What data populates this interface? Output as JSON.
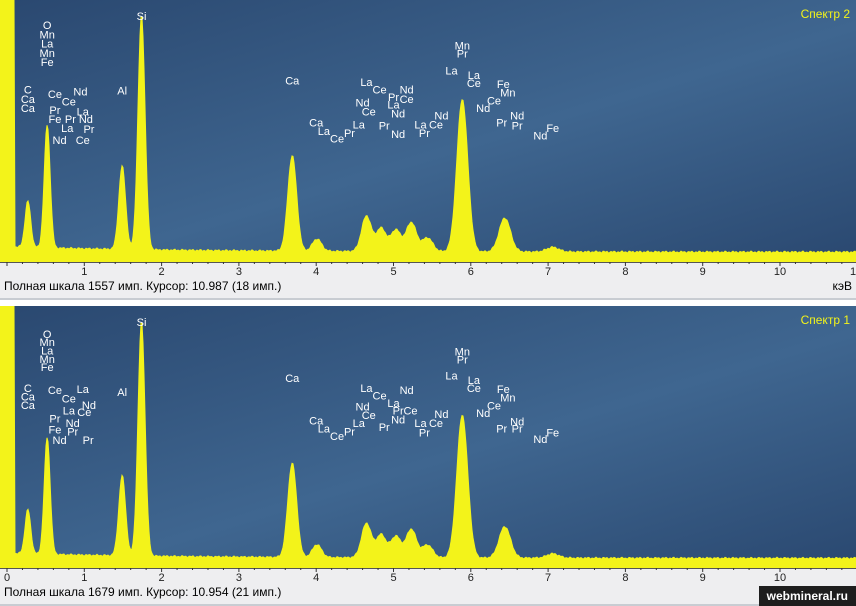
{
  "chart_data": [
    {
      "type": "line",
      "title": "Спектр 2",
      "xlabel": "кэВ",
      "xlim": [
        0,
        11
      ],
      "ylim": [
        0,
        1557
      ],
      "x_ticks": [
        "1",
        "2",
        "3",
        "4",
        "5",
        "6",
        "7",
        "8",
        "9",
        "10",
        "1"
      ],
      "status_text": "Полная шкала 1557 имп. Курсор: 10.987  (18 имп.)",
      "peaks": [
        {
          "x": 0.27,
          "y": 300
        },
        {
          "x": 0.52,
          "y": 800
        },
        {
          "x": 1.49,
          "y": 540
        },
        {
          "x": 1.74,
          "y": 1520
        },
        {
          "x": 3.69,
          "y": 620
        },
        {
          "x": 4.01,
          "y": 80
        },
        {
          "x": 4.65,
          "y": 230
        },
        {
          "x": 4.84,
          "y": 150
        },
        {
          "x": 5.03,
          "y": 140
        },
        {
          "x": 5.23,
          "y": 190
        },
        {
          "x": 5.44,
          "y": 90
        },
        {
          "x": 5.89,
          "y": 990
        },
        {
          "x": 6.44,
          "y": 220
        },
        {
          "x": 7.06,
          "y": 30
        }
      ],
      "labels": [
        {
          "text": "Si",
          "x": 1.74,
          "row": 0
        },
        {
          "text": "O",
          "x": 0.52,
          "row": 1
        },
        {
          "text": "Mn",
          "x": 0.52,
          "row": 2
        },
        {
          "text": "La",
          "x": 0.52,
          "row": 3
        },
        {
          "text": "Mn",
          "x": 0.52,
          "row": 4
        },
        {
          "text": "Fe",
          "x": 0.52,
          "row": 5
        },
        {
          "text": "C",
          "x": 0.27,
          "row": 8
        },
        {
          "text": "Ca",
          "x": 0.27,
          "row": 9
        },
        {
          "text": "Ca",
          "x": 0.27,
          "row": 10
        },
        {
          "text": "Ce",
          "x": 0.62,
          "row": 8.5
        },
        {
          "text": "Ce",
          "x": 0.8,
          "row": 9.3
        },
        {
          "text": "Nd",
          "x": 0.95,
          "row": 8.2
        },
        {
          "text": "Pr",
          "x": 0.62,
          "row": 10.2
        },
        {
          "text": "Fe",
          "x": 0.62,
          "row": 11.2
        },
        {
          "text": "Pr",
          "x": 0.82,
          "row": 11.2
        },
        {
          "text": "La",
          "x": 0.98,
          "row": 10.4
        },
        {
          "text": "Nd",
          "x": 1.02,
          "row": 11.2
        },
        {
          "text": "La",
          "x": 0.78,
          "row": 12.2
        },
        {
          "text": "Pr",
          "x": 1.06,
          "row": 12.3
        },
        {
          "text": "Nd",
          "x": 0.68,
          "row": 13.5
        },
        {
          "text": "Ce",
          "x": 0.98,
          "row": 13.5
        },
        {
          "text": "Al",
          "x": 1.49,
          "row": 8.1
        },
        {
          "text": "Ca",
          "x": 3.69,
          "row": 7.0
        },
        {
          "text": "Ca",
          "x": 4.0,
          "row": 11.6
        },
        {
          "text": "La",
          "x": 4.1,
          "row": 12.5
        },
        {
          "text": "Ce",
          "x": 4.27,
          "row": 13.3
        },
        {
          "text": "Pr",
          "x": 4.43,
          "row": 12.7
        },
        {
          "text": "La",
          "x": 4.55,
          "row": 11.8
        },
        {
          "text": "Nd",
          "x": 4.6,
          "row": 9.4
        },
        {
          "text": "Ce",
          "x": 4.68,
          "row": 10.4
        },
        {
          "text": "La",
          "x": 4.65,
          "row": 7.2
        },
        {
          "text": "Ce",
          "x": 4.82,
          "row": 8.0
        },
        {
          "text": "Pr",
          "x": 5.0,
          "row": 8.8
        },
        {
          "text": "Nd",
          "x": 5.17,
          "row": 8.0
        },
        {
          "text": "Ce",
          "x": 5.17,
          "row": 9.0
        },
        {
          "text": "La",
          "x": 5.0,
          "row": 9.6
        },
        {
          "text": "Nd",
          "x": 5.06,
          "row": 10.6
        },
        {
          "text": "Pr",
          "x": 4.88,
          "row": 11.9
        },
        {
          "text": "Nd",
          "x": 5.06,
          "row": 12.8
        },
        {
          "text": "La",
          "x": 5.35,
          "row": 11.8
        },
        {
          "text": "Ce",
          "x": 5.55,
          "row": 11.8
        },
        {
          "text": "Nd",
          "x": 5.62,
          "row": 10.8
        },
        {
          "text": "Pr",
          "x": 5.4,
          "row": 12.7
        },
        {
          "text": "Mn",
          "x": 5.89,
          "row": 3.2
        },
        {
          "text": "Pr",
          "x": 5.89,
          "row": 4.1
        },
        {
          "text": "La",
          "x": 5.75,
          "row": 5.9
        },
        {
          "text": "La",
          "x": 6.04,
          "row": 6.4
        },
        {
          "text": "Ce",
          "x": 6.04,
          "row": 7.3
        },
        {
          "text": "Fe",
          "x": 6.42,
          "row": 7.4
        },
        {
          "text": "Mn",
          "x": 6.48,
          "row": 8.3
        },
        {
          "text": "Ce",
          "x": 6.3,
          "row": 9.2
        },
        {
          "text": "Nd",
          "x": 6.16,
          "row": 10.0
        },
        {
          "text": "Nd",
          "x": 6.6,
          "row": 10.8
        },
        {
          "text": "Pr",
          "x": 6.4,
          "row": 11.6
        },
        {
          "text": "Pr",
          "x": 6.6,
          "row": 11.9
        },
        {
          "text": "Nd",
          "x": 6.9,
          "row": 13.0
        },
        {
          "text": "Fe",
          "x": 7.06,
          "row": 12.2
        }
      ]
    },
    {
      "type": "line",
      "title": "Спектр 1",
      "xlabel": "",
      "xlim": [
        0,
        11
      ],
      "ylim": [
        0,
        1679
      ],
      "x_ticks": [
        "0",
        "1",
        "2",
        "3",
        "4",
        "5",
        "6",
        "7",
        "8",
        "9",
        "10"
      ],
      "status_text": "Полная шкала 1679 имп. Курсор: 10.954  (21 имп.)",
      "peaks": [
        {
          "x": 0.27,
          "y": 310
        },
        {
          "x": 0.52,
          "y": 820
        },
        {
          "x": 1.49,
          "y": 560
        },
        {
          "x": 1.74,
          "y": 1640
        },
        {
          "x": 3.69,
          "y": 660
        },
        {
          "x": 4.01,
          "y": 90
        },
        {
          "x": 4.65,
          "y": 240
        },
        {
          "x": 4.84,
          "y": 160
        },
        {
          "x": 5.03,
          "y": 150
        },
        {
          "x": 5.23,
          "y": 200
        },
        {
          "x": 5.44,
          "y": 90
        },
        {
          "x": 5.89,
          "y": 1000
        },
        {
          "x": 6.44,
          "y": 220
        },
        {
          "x": 7.06,
          "y": 30
        }
      ],
      "labels": [
        {
          "text": "Si",
          "x": 1.74,
          "row": 0
        },
        {
          "text": "O",
          "x": 0.52,
          "row": 1.3
        },
        {
          "text": "Mn",
          "x": 0.52,
          "row": 2.2
        },
        {
          "text": "La",
          "x": 0.52,
          "row": 3.1
        },
        {
          "text": "Mn",
          "x": 0.52,
          "row": 4.0
        },
        {
          "text": "Fe",
          "x": 0.52,
          "row": 4.9
        },
        {
          "text": "C",
          "x": 0.27,
          "row": 7.2
        },
        {
          "text": "Ca",
          "x": 0.27,
          "row": 8.1
        },
        {
          "text": "Ca",
          "x": 0.27,
          "row": 9.0
        },
        {
          "text": "Ce",
          "x": 0.62,
          "row": 7.4
        },
        {
          "text": "La",
          "x": 0.98,
          "row": 7.3
        },
        {
          "text": "Ce",
          "x": 0.8,
          "row": 8.3
        },
        {
          "text": "Nd",
          "x": 1.06,
          "row": 9.0
        },
        {
          "text": "Ce",
          "x": 1.0,
          "row": 9.8
        },
        {
          "text": "La",
          "x": 0.8,
          "row": 9.6
        },
        {
          "text": "Pr",
          "x": 0.62,
          "row": 10.5
        },
        {
          "text": "Nd",
          "x": 0.85,
          "row": 11.0
        },
        {
          "text": "Fe",
          "x": 0.62,
          "row": 11.7
        },
        {
          "text": "Pr",
          "x": 0.85,
          "row": 11.9
        },
        {
          "text": "Nd",
          "x": 0.68,
          "row": 12.8
        },
        {
          "text": "Pr",
          "x": 1.05,
          "row": 12.8
        },
        {
          "text": "Al",
          "x": 1.49,
          "row": 7.6
        },
        {
          "text": "Ca",
          "x": 3.69,
          "row": 6.1
        },
        {
          "text": "Ca",
          "x": 4.0,
          "row": 10.7
        },
        {
          "text": "La",
          "x": 4.1,
          "row": 11.6
        },
        {
          "text": "Ce",
          "x": 4.27,
          "row": 12.4
        },
        {
          "text": "Pr",
          "x": 4.43,
          "row": 11.9
        },
        {
          "text": "La",
          "x": 4.55,
          "row": 11.0
        },
        {
          "text": "Ce",
          "x": 4.68,
          "row": 10.1
        },
        {
          "text": "Nd",
          "x": 4.6,
          "row": 9.2
        },
        {
          "text": "La",
          "x": 4.65,
          "row": 7.2
        },
        {
          "text": "Ce",
          "x": 4.82,
          "row": 8.0
        },
        {
          "text": "Nd",
          "x": 5.17,
          "row": 7.4
        },
        {
          "text": "La",
          "x": 5.0,
          "row": 8.8
        },
        {
          "text": "Pr",
          "x": 5.06,
          "row": 9.6
        },
        {
          "text": "Ce",
          "x": 5.22,
          "row": 9.6
        },
        {
          "text": "Nd",
          "x": 5.06,
          "row": 10.6
        },
        {
          "text": "Pr",
          "x": 4.88,
          "row": 11.4
        },
        {
          "text": "La",
          "x": 5.35,
          "row": 11.0
        },
        {
          "text": "Ce",
          "x": 5.55,
          "row": 11.0
        },
        {
          "text": "Nd",
          "x": 5.62,
          "row": 10.0
        },
        {
          "text": "Pr",
          "x": 5.4,
          "row": 12.0
        },
        {
          "text": "Mn",
          "x": 5.89,
          "row": 3.2
        },
        {
          "text": "Pr",
          "x": 5.89,
          "row": 4.1
        },
        {
          "text": "La",
          "x": 5.75,
          "row": 5.8
        },
        {
          "text": "La",
          "x": 6.04,
          "row": 6.3
        },
        {
          "text": "Ce",
          "x": 6.04,
          "row": 7.2
        },
        {
          "text": "Fe",
          "x": 6.42,
          "row": 7.3
        },
        {
          "text": "Mn",
          "x": 6.48,
          "row": 8.2
        },
        {
          "text": "Ce",
          "x": 6.3,
          "row": 9.1
        },
        {
          "text": "Nd",
          "x": 6.16,
          "row": 9.9
        },
        {
          "text": "Nd",
          "x": 6.6,
          "row": 10.8
        },
        {
          "text": "Pr",
          "x": 6.4,
          "row": 11.6
        },
        {
          "text": "Pr",
          "x": 6.6,
          "row": 11.6
        },
        {
          "text": "Nd",
          "x": 6.9,
          "row": 12.7
        },
        {
          "text": "Fe",
          "x": 7.06,
          "row": 12.0
        }
      ]
    }
  ],
  "colors": {
    "plot_bg_top": "#2a4870",
    "plot_bg_mid": "#3f6690",
    "spectrum": "#f3f31a",
    "title_text": "#f3f31a",
    "label_text": "#ffffff"
  },
  "watermark": "webmineral.ru"
}
